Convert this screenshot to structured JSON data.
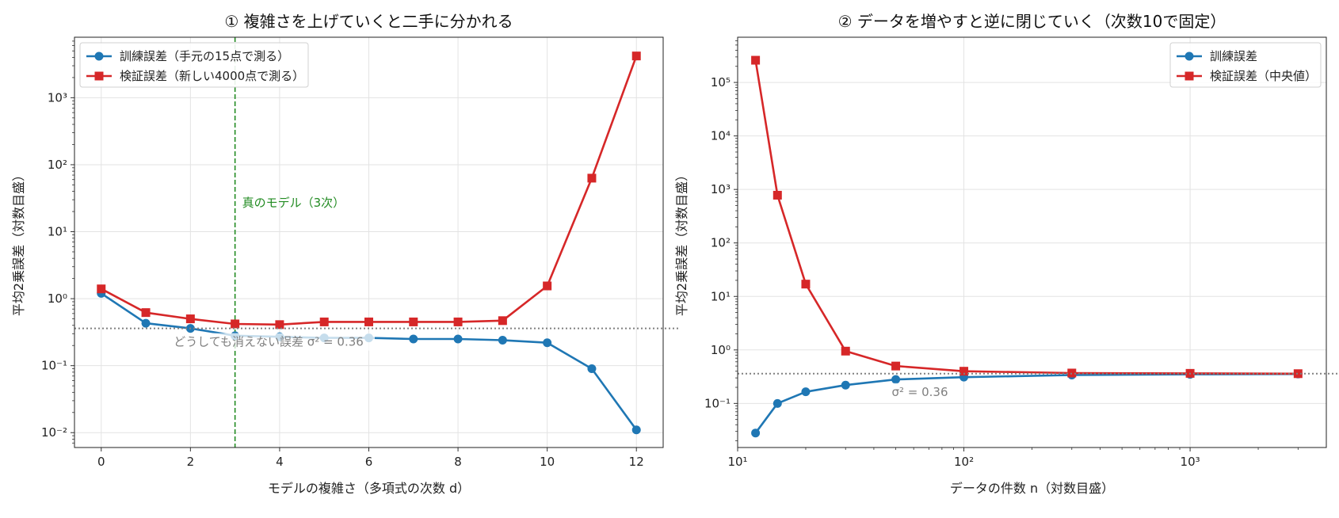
{
  "chart_data": [
    {
      "type": "line",
      "title": "① 複雑さを上げていくと二手に分かれる",
      "xlabel": "モデルの複雑さ（多項式の次数 d）",
      "ylabel": "平均2乗誤差（対数目盛）",
      "x_scale": "linear",
      "y_scale": "log",
      "xlim": [
        -0.6,
        12.6
      ],
      "ylim": [
        0.006,
        8000
      ],
      "x_ticks": [
        "0",
        "2",
        "4",
        "6",
        "8",
        "10",
        "12"
      ],
      "y_ticks": [
        "10⁻²",
        "10⁻¹",
        "10⁰",
        "10¹",
        "10²",
        "10³"
      ],
      "grid": true,
      "legend_position": "upper-left",
      "x": [
        0,
        1,
        2,
        3,
        4,
        5,
        6,
        7,
        8,
        9,
        10,
        11,
        12
      ],
      "series": [
        {
          "name": "訓練誤差（手元の15点で測る）",
          "color": "#1f77b4",
          "marker": "circle",
          "values": [
            1.2,
            0.43,
            0.36,
            0.28,
            0.27,
            0.26,
            0.26,
            0.25,
            0.25,
            0.24,
            0.22,
            0.09,
            0.011
          ]
        },
        {
          "name": "検証誤差（新しい4000点で測る）",
          "color": "#d62728",
          "marker": "square",
          "values": [
            1.4,
            0.62,
            0.5,
            0.42,
            0.41,
            0.45,
            0.45,
            0.45,
            0.45,
            0.47,
            1.55,
            63,
            4200
          ]
        }
      ],
      "hline": {
        "value": 0.36,
        "label": "どうしても消えない誤差 σ² = 0.36",
        "color": "#808080"
      },
      "vline": {
        "value": 3,
        "label": "真のモデル（3次）",
        "color": "#228b22"
      }
    },
    {
      "type": "line",
      "title": "② データを増やすと逆に閉じていく（次数10で固定）",
      "xlabel": "データの件数 n（対数目盛）",
      "ylabel": "平均2乗誤差（対数目盛）",
      "x_scale": "log",
      "y_scale": "log",
      "xlim": [
        10,
        4000
      ],
      "ylim": [
        0.015,
        700000
      ],
      "x_ticks": [
        "10¹",
        "10²",
        "10³"
      ],
      "y_ticks": [
        "10⁻¹",
        "10⁰",
        "10¹",
        "10²",
        "10³",
        "10⁴",
        "10⁵"
      ],
      "grid": true,
      "legend_position": "upper-right",
      "x": [
        12,
        15,
        20,
        30,
        50,
        100,
        300,
        1000,
        3000
      ],
      "series": [
        {
          "name": "訓練誤差",
          "color": "#1f77b4",
          "marker": "circle",
          "values": [
            0.028,
            0.1,
            0.165,
            0.22,
            0.28,
            0.31,
            0.34,
            0.35,
            0.355
          ]
        },
        {
          "name": "検証誤差（中央値）",
          "color": "#d62728",
          "marker": "square",
          "values": [
            260000,
            780,
            17,
            0.95,
            0.5,
            0.4,
            0.37,
            0.365,
            0.36
          ]
        }
      ],
      "hline": {
        "value": 0.36,
        "label": "σ² = 0.36",
        "color": "#808080"
      }
    }
  ]
}
